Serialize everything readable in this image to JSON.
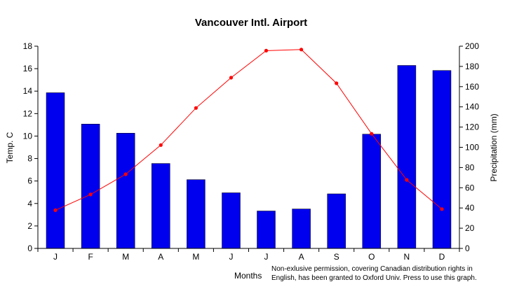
{
  "chart_data": {
    "type": "bar+line",
    "title": "Vancouver Intl. Airport",
    "xlabel": "Months",
    "ylabel_left": "Temp. C",
    "ylabel_right": "Precipitation (mm)",
    "categories": [
      "J",
      "F",
      "M",
      "A",
      "M",
      "J",
      "J",
      "A",
      "S",
      "O",
      "N",
      "D"
    ],
    "y_left_ticks": [
      "0",
      "2",
      "4",
      "6",
      "8",
      "10",
      "12",
      "14",
      "16",
      "18"
    ],
    "y_right_ticks": [
      "0",
      "20",
      "40",
      "60",
      "80",
      "100",
      "120",
      "140",
      "160",
      "180",
      "200"
    ],
    "ylim_left": [
      0,
      18
    ],
    "ylim_right": [
      0,
      200
    ],
    "grid": false,
    "series": [
      {
        "kind": "bar",
        "axis": "right",
        "color": "#0000ee",
        "values": [
          154,
          123,
          114,
          84,
          68,
          55,
          37,
          39,
          54,
          113,
          181,
          176
        ]
      },
      {
        "kind": "line",
        "axis": "left",
        "color": "#ff0000",
        "values": [
          3.4,
          4.8,
          6.6,
          9.2,
          12.5,
          15.2,
          17.6,
          17.7,
          14.7,
          10.2,
          6.1,
          3.5
        ]
      }
    ],
    "note_lines": [
      "Non-exlusive permission, covering Canadian distribution rights in",
      "English, has been granted to Oxford Univ. Press to use this graph."
    ]
  }
}
